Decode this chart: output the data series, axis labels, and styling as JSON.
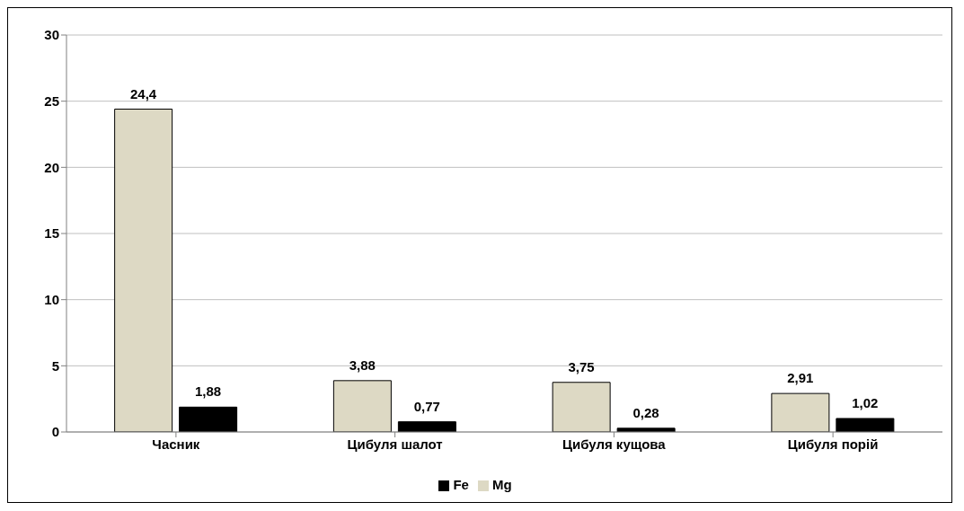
{
  "chart_data": {
    "type": "bar",
    "categories": [
      "Часник",
      "Цибуля шалот",
      "Цибуля кущова",
      "Цибуля порій"
    ],
    "series": [
      {
        "name": "Mg",
        "color": "#ddd9c4",
        "values": [
          24.4,
          3.88,
          3.75,
          2.91
        ],
        "value_labels": [
          "24,4",
          "3,88",
          "3,75",
          "2,91"
        ]
      },
      {
        "name": "Fe",
        "color": "#000000",
        "values": [
          1.88,
          0.77,
          0.28,
          1.02
        ],
        "value_labels": [
          "1,88",
          "0,77",
          "0,28",
          "1,02"
        ]
      }
    ],
    "ylim": [
      0,
      30
    ],
    "yticks": [
      0,
      5,
      10,
      15,
      20,
      25,
      30
    ],
    "grid": "y",
    "legend": "bottom"
  }
}
